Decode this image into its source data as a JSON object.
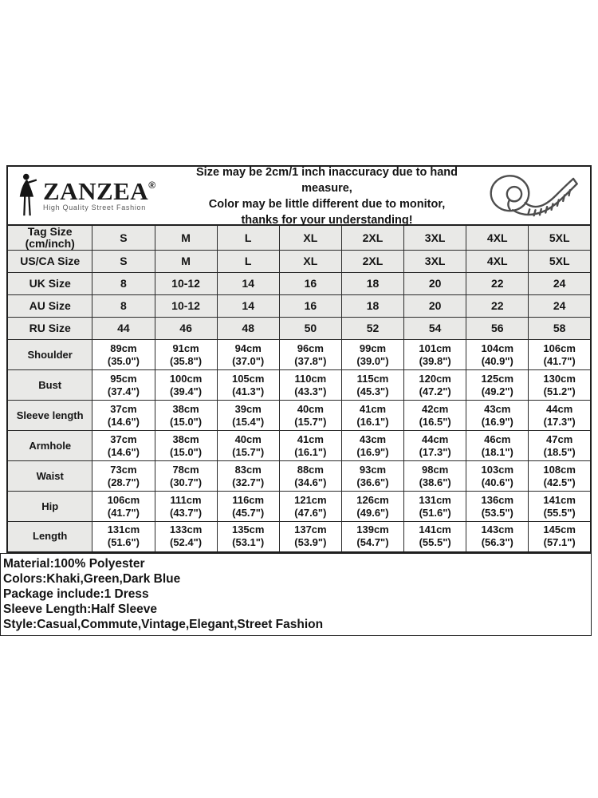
{
  "header": {
    "logo": {
      "brand": "ZANZEA",
      "registered_mark": "®",
      "tagline": "High Quality Street Fashion"
    },
    "notice_lines": [
      "Size may be 2cm/1 inch inaccuracy due to hand measure,",
      "Color may be little different due to monitor,",
      "thanks for your understanding!"
    ],
    "icons": {
      "logo_figure": "woman-silhouette-icon",
      "tape": "measuring-tape-icon"
    }
  },
  "size_table": {
    "size_rows": [
      {
        "label_lines": [
          "Tag Size",
          "(cm/inch)"
        ],
        "values": [
          "S",
          "M",
          "L",
          "XL",
          "2XL",
          "3XL",
          "4XL",
          "5XL"
        ]
      },
      {
        "label_lines": [
          "US/CA Size"
        ],
        "values": [
          "S",
          "M",
          "L",
          "XL",
          "2XL",
          "3XL",
          "4XL",
          "5XL"
        ]
      },
      {
        "label_lines": [
          "UK Size"
        ],
        "values": [
          "8",
          "10-12",
          "14",
          "16",
          "18",
          "20",
          "22",
          "24"
        ]
      },
      {
        "label_lines": [
          "AU Size"
        ],
        "values": [
          "8",
          "10-12",
          "14",
          "16",
          "18",
          "20",
          "22",
          "24"
        ]
      },
      {
        "label_lines": [
          "RU Size"
        ],
        "values": [
          "44",
          "46",
          "48",
          "50",
          "52",
          "54",
          "56",
          "58"
        ]
      }
    ],
    "measure_rows": [
      {
        "label": "Shoulder",
        "cm": [
          "89cm",
          "91cm",
          "94cm",
          "96cm",
          "99cm",
          "101cm",
          "104cm",
          "106cm"
        ],
        "inch": [
          "(35.0\")",
          "(35.8\")",
          "(37.0\")",
          "(37.8\")",
          "(39.0\")",
          "(39.8\")",
          "(40.9\")",
          "(41.7\")"
        ]
      },
      {
        "label": "Bust",
        "cm": [
          "95cm",
          "100cm",
          "105cm",
          "110cm",
          "115cm",
          "120cm",
          "125cm",
          "130cm"
        ],
        "inch": [
          "(37.4\")",
          "(39.4\")",
          "(41.3\")",
          "(43.3\")",
          "(45.3\")",
          "(47.2\")",
          "(49.2\")",
          "(51.2\")"
        ]
      },
      {
        "label": "Sleeve length",
        "cm": [
          "37cm",
          "38cm",
          "39cm",
          "40cm",
          "41cm",
          "42cm",
          "43cm",
          "44cm"
        ],
        "inch": [
          "(14.6\")",
          "(15.0\")",
          "(15.4\")",
          "(15.7\")",
          "(16.1\")",
          "(16.5\")",
          "(16.9\")",
          "(17.3\")"
        ]
      },
      {
        "label": "Armhole",
        "cm": [
          "37cm",
          "38cm",
          "40cm",
          "41cm",
          "43cm",
          "44cm",
          "46cm",
          "47cm"
        ],
        "inch": [
          "(14.6\")",
          "(15.0\")",
          "(15.7\")",
          "(16.1\")",
          "(16.9\")",
          "(17.3\")",
          "(18.1\")",
          "(18.5\")"
        ]
      },
      {
        "label": "Waist",
        "cm": [
          "73cm",
          "78cm",
          "83cm",
          "88cm",
          "93cm",
          "98cm",
          "103cm",
          "108cm"
        ],
        "inch": [
          "(28.7\")",
          "(30.7\")",
          "(32.7\")",
          "(34.6\")",
          "(36.6\")",
          "(38.6\")",
          "(40.6\")",
          "(42.5\")"
        ]
      },
      {
        "label": "Hip",
        "cm": [
          "106cm",
          "111cm",
          "116cm",
          "121cm",
          "126cm",
          "131cm",
          "136cm",
          "141cm"
        ],
        "inch": [
          "(41.7\")",
          "(43.7\")",
          "(45.7\")",
          "(47.6\")",
          "(49.6\")",
          "(51.6\")",
          "(53.5\")",
          "(55.5\")"
        ]
      },
      {
        "label": "Length",
        "cm": [
          "131cm",
          "133cm",
          "135cm",
          "137cm",
          "139cm",
          "141cm",
          "143cm",
          "145cm"
        ],
        "inch": [
          "(51.6\")",
          "(52.4\")",
          "(53.1\")",
          "(53.9\")",
          "(54.7\")",
          "(55.5\")",
          "(56.3\")",
          "(57.1\")"
        ]
      }
    ]
  },
  "details_lines": [
    "Material:100% Polyester",
    "Colors:Khaki,Green,Dark Blue",
    "Package include:1 Dress",
    "Sleeve Length:Half Sleeve",
    "Style:Casual,Commute,Vintage,Elegant,Street Fashion"
  ],
  "colors": {
    "row_shade": "#e9e9e7",
    "border": "#1f1f1f",
    "icon_stroke": "#4d4d4d",
    "text": "#141414"
  }
}
